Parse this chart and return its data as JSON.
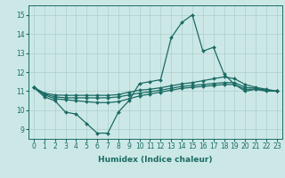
{
  "xlabel": "Humidex (Indice chaleur)",
  "xlim": [
    -0.5,
    23.5
  ],
  "ylim": [
    8.5,
    15.5
  ],
  "xticks": [
    0,
    1,
    2,
    3,
    4,
    5,
    6,
    7,
    8,
    9,
    10,
    11,
    12,
    13,
    14,
    15,
    16,
    17,
    18,
    19,
    20,
    21,
    22,
    23
  ],
  "yticks": [
    9,
    10,
    11,
    12,
    13,
    14,
    15
  ],
  "background_color": "#cce8e6",
  "grid_color": "#aacfcd",
  "line_color": "#1a6b64",
  "series": [
    [
      11.2,
      10.7,
      10.5,
      9.9,
      9.8,
      9.3,
      8.8,
      8.8,
      9.9,
      10.5,
      11.4,
      11.5,
      11.6,
      13.8,
      14.6,
      15.0,
      13.1,
      13.3,
      11.9,
      11.35,
      11.0,
      11.1,
      11.0,
      11.0
    ],
    [
      11.2,
      10.8,
      10.6,
      10.55,
      10.5,
      10.45,
      10.4,
      10.4,
      10.45,
      10.6,
      10.75,
      10.85,
      10.95,
      11.05,
      11.15,
      11.2,
      11.25,
      11.3,
      11.35,
      11.35,
      11.1,
      11.1,
      11.05,
      11.0
    ],
    [
      11.2,
      10.85,
      10.7,
      10.65,
      10.65,
      10.65,
      10.65,
      10.65,
      10.7,
      10.8,
      10.9,
      10.97,
      11.05,
      11.15,
      11.25,
      11.3,
      11.35,
      11.4,
      11.45,
      11.45,
      11.2,
      11.15,
      11.05,
      11.0
    ],
    [
      11.2,
      10.9,
      10.8,
      10.78,
      10.78,
      10.78,
      10.78,
      10.78,
      10.82,
      10.95,
      11.05,
      11.1,
      11.18,
      11.28,
      11.38,
      11.45,
      11.55,
      11.65,
      11.75,
      11.65,
      11.35,
      11.2,
      11.1,
      11.0
    ]
  ],
  "xlabel_fontsize": 6.5,
  "tick_fontsize": 5.5,
  "linewidth": 0.9,
  "markersize": 2.0
}
